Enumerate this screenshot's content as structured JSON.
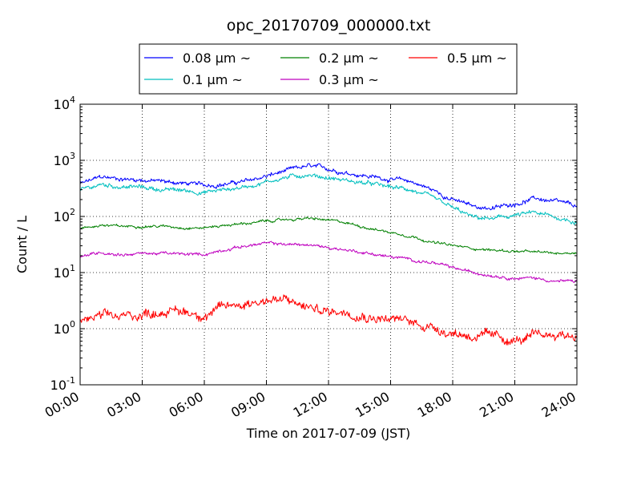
{
  "chart_data": {
    "type": "line",
    "title": "opc_20170709_000000.txt",
    "xlabel": "Time on 2017-07-09 (JST)",
    "ylabel": "Count / L",
    "yscale": "log",
    "ylim": [
      0.1,
      10000
    ],
    "xlim": [
      "00:00",
      "24:00"
    ],
    "xticks": [
      "00:00",
      "03:00",
      "06:00",
      "09:00",
      "12:00",
      "15:00",
      "18:00",
      "21:00",
      "24:00"
    ],
    "yticks": [
      {
        "base": "10",
        "exp": "-1"
      },
      {
        "base": "10",
        "exp": "0"
      },
      {
        "base": "10",
        "exp": "1"
      },
      {
        "base": "10",
        "exp": "2"
      },
      {
        "base": "10",
        "exp": "3"
      },
      {
        "base": "10",
        "exp": "4"
      }
    ],
    "grid": true,
    "legend_position": "top-center",
    "x": [
      "00:00",
      "01:00",
      "02:00",
      "03:00",
      "04:00",
      "05:00",
      "06:00",
      "07:00",
      "08:00",
      "09:00",
      "10:00",
      "11:00",
      "12:00",
      "13:00",
      "14:00",
      "15:00",
      "16:00",
      "17:00",
      "18:00",
      "19:00",
      "20:00",
      "21:00",
      "22:00",
      "23:00",
      "24:00"
    ],
    "series": [
      {
        "name": "0.08",
        "unit": "µm ~",
        "color": "#0000ff",
        "values": [
          380,
          500,
          470,
          450,
          420,
          390,
          360,
          380,
          420,
          520,
          650,
          780,
          700,
          600,
          520,
          460,
          420,
          300,
          200,
          150,
          140,
          170,
          210,
          180,
          150
        ]
      },
      {
        "name": "0.1",
        "unit": "µm ~",
        "color": "#00bfbf",
        "values": [
          290,
          370,
          340,
          330,
          300,
          290,
          270,
          300,
          340,
          420,
          500,
          560,
          490,
          430,
          380,
          330,
          300,
          210,
          140,
          95,
          90,
          105,
          115,
          95,
          80
        ]
      },
      {
        "name": "0.2",
        "unit": "µm ~",
        "color": "#008000",
        "values": [
          60,
          70,
          66,
          68,
          67,
          64,
          63,
          70,
          75,
          82,
          88,
          92,
          85,
          75,
          62,
          52,
          45,
          35,
          30,
          27,
          25,
          24,
          23,
          22,
          23
        ]
      },
      {
        "name": "0.3",
        "unit": "µm ~",
        "color": "#bf00bf",
        "values": [
          19,
          23,
          21,
          22,
          22,
          21,
          21,
          26,
          30,
          33,
          32,
          31,
          28,
          25,
          22,
          19,
          17,
          15,
          12,
          10,
          9,
          8,
          8,
          7,
          7
        ]
      },
      {
        "name": "0.5",
        "unit": "µm ~",
        "color": "#ff0000",
        "values": [
          1.4,
          1.6,
          1.6,
          1.8,
          2.1,
          2.0,
          1.8,
          2.4,
          2.9,
          3.3,
          3.1,
          2.4,
          2.0,
          2.1,
          1.7,
          1.5,
          1.3,
          1.1,
          0.85,
          0.75,
          0.7,
          0.6,
          0.7,
          0.8,
          0.75
        ]
      }
    ]
  }
}
